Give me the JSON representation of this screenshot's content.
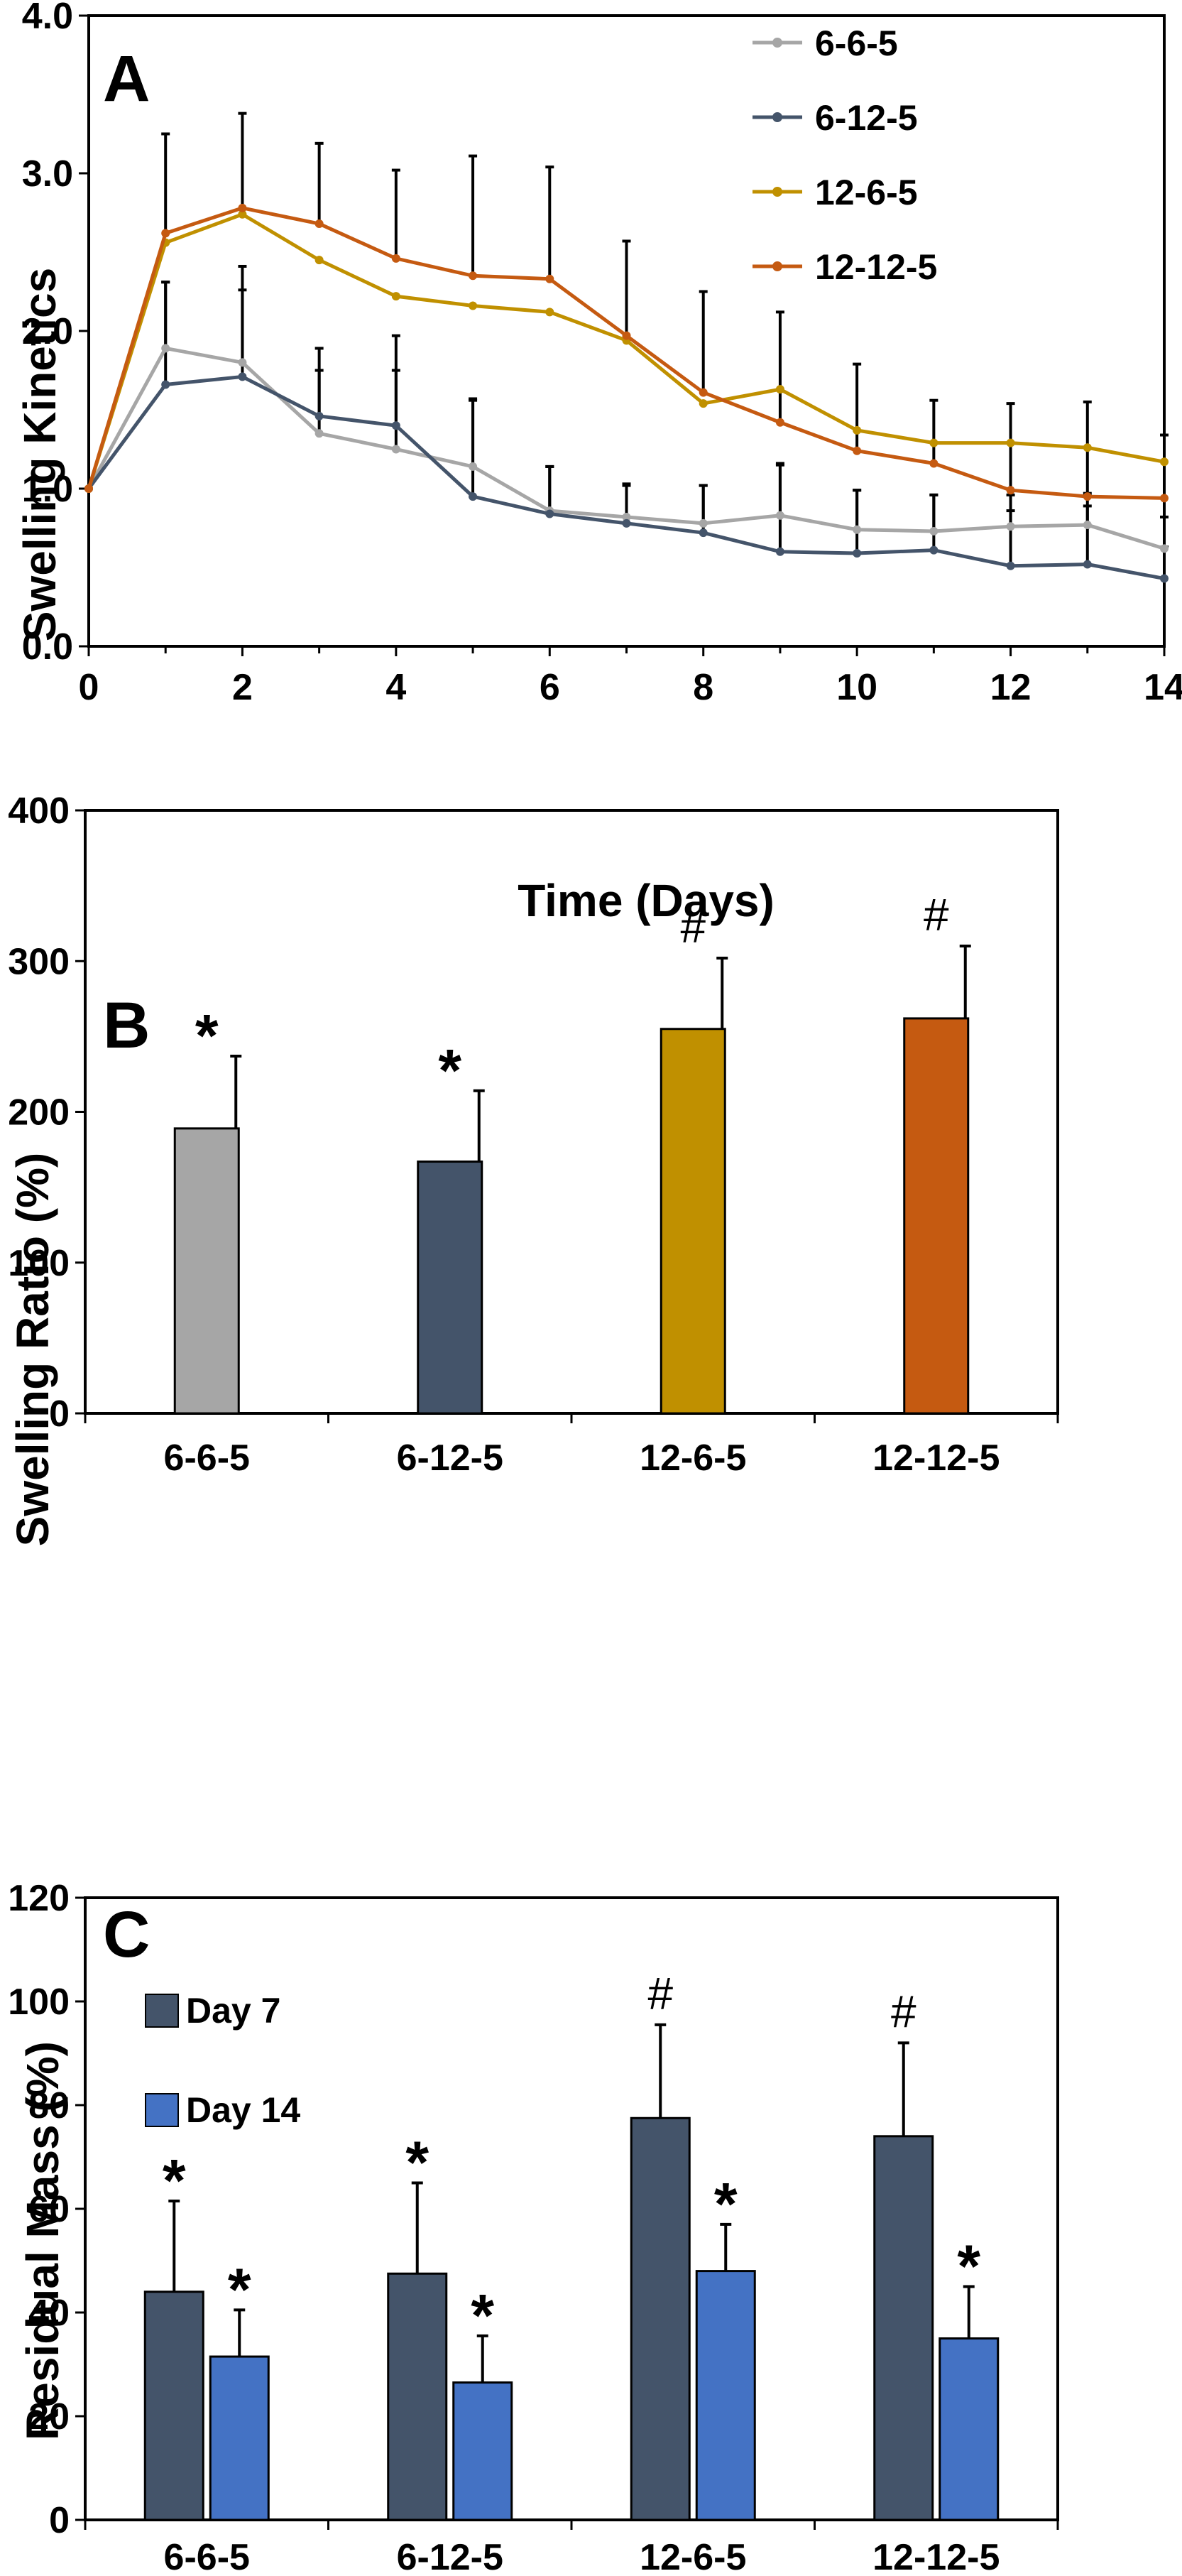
{
  "chart_data": [
    {
      "panel": "A",
      "type": "line",
      "xlabel": "Time (Days)",
      "ylabel": "Swelling Kinetics",
      "xlim": [
        0,
        14
      ],
      "ylim": [
        0,
        4
      ],
      "xticks": [
        "0",
        "2",
        "4",
        "6",
        "8",
        "10",
        "12",
        "14"
      ],
      "yticks": [
        "0.0",
        "1.0",
        "2.0",
        "3.0",
        "4.0"
      ],
      "legend_position": "top-right",
      "x": [
        0,
        1,
        2,
        3,
        4,
        5,
        6,
        7,
        8,
        9,
        10,
        11,
        12,
        13,
        14
      ],
      "series": [
        {
          "name": "6-6-5",
          "color": "#A6A6A6",
          "values": [
            1.0,
            1.89,
            1.8,
            1.35,
            1.25,
            1.14,
            0.86,
            0.82,
            0.78,
            0.83,
            0.74,
            0.73,
            0.76,
            0.77,
            0.62
          ],
          "errors": [
            0,
            0.42,
            0.46,
            0.4,
            0.5,
            0.42,
            0.28,
            0.2,
            0.24,
            0.33,
            0.25,
            0.23,
            0.2,
            0.2,
            0.2
          ]
        },
        {
          "name": "6-12-5",
          "color": "#44546A",
          "values": [
            1.0,
            1.66,
            1.71,
            1.46,
            1.4,
            0.95,
            0.84,
            0.78,
            0.72,
            0.6,
            0.59,
            0.61,
            0.51,
            0.52,
            0.43
          ],
          "errors": [
            0,
            0.65,
            0.7,
            0.43,
            0.57,
            0.62,
            0.3,
            0.25,
            0.3,
            0.55,
            0.4,
            0.35,
            0.35,
            0.37,
            0.2
          ]
        },
        {
          "name": "12-6-5",
          "color": "#C09000",
          "values": [
            1.0,
            2.56,
            2.74,
            2.45,
            2.22,
            2.16,
            2.12,
            1.94,
            1.54,
            1.63,
            1.37,
            1.29,
            1.29,
            1.26,
            1.17
          ]
        },
        {
          "name": "12-12-5",
          "color": "#C55A11",
          "values": [
            1.0,
            2.62,
            2.78,
            2.68,
            2.46,
            2.35,
            2.33,
            1.97,
            1.61,
            1.42,
            1.24,
            1.16,
            0.99,
            0.95,
            0.94
          ],
          "errors": [
            0,
            0.63,
            0.6,
            0.51,
            0.56,
            0.76,
            0.71,
            0.6,
            0.64,
            0.7,
            0.55,
            0.4,
            0.55,
            0.6,
            0.4
          ]
        }
      ]
    },
    {
      "panel": "B",
      "type": "bar",
      "ylabel": "Swelling Ratio (%)",
      "ylim": [
        0,
        400
      ],
      "yticks": [
        "0",
        "100",
        "200",
        "300",
        "400"
      ],
      "categories": [
        "6-6-5",
        "6-12-5",
        "12-6-5",
        "12-12-5"
      ],
      "values": [
        189,
        167,
        255,
        262
      ],
      "errors": [
        48,
        47,
        47,
        48
      ],
      "colors": [
        "#A6A6A6",
        "#44546A",
        "#C09000",
        "#C55A11"
      ],
      "annotations": [
        "*",
        "*",
        "#",
        "#"
      ]
    },
    {
      "panel": "C",
      "type": "bar",
      "ylabel": "Residual Mass (%)",
      "ylim": [
        0,
        120
      ],
      "yticks": [
        "0",
        "20",
        "40",
        "60",
        "80",
        "100",
        "120"
      ],
      "categories": [
        "6-6-5",
        "6-12-5",
        "12-6-5",
        "12-12-5"
      ],
      "legend_position": "top-left",
      "series": [
        {
          "name": "Day 7",
          "color": "#44546A",
          "values": [
            44,
            47.5,
            77.5,
            74
          ],
          "errors": [
            17.5,
            17.5,
            18,
            18
          ],
          "annotations": [
            "*",
            "*",
            "#",
            "#"
          ]
        },
        {
          "name": "Day 14",
          "color": "#4472C4",
          "values": [
            31.5,
            26.5,
            48,
            35
          ],
          "errors": [
            9,
            9,
            9,
            10
          ],
          "annotations": [
            "*",
            "*",
            "*",
            "*"
          ]
        }
      ]
    }
  ]
}
